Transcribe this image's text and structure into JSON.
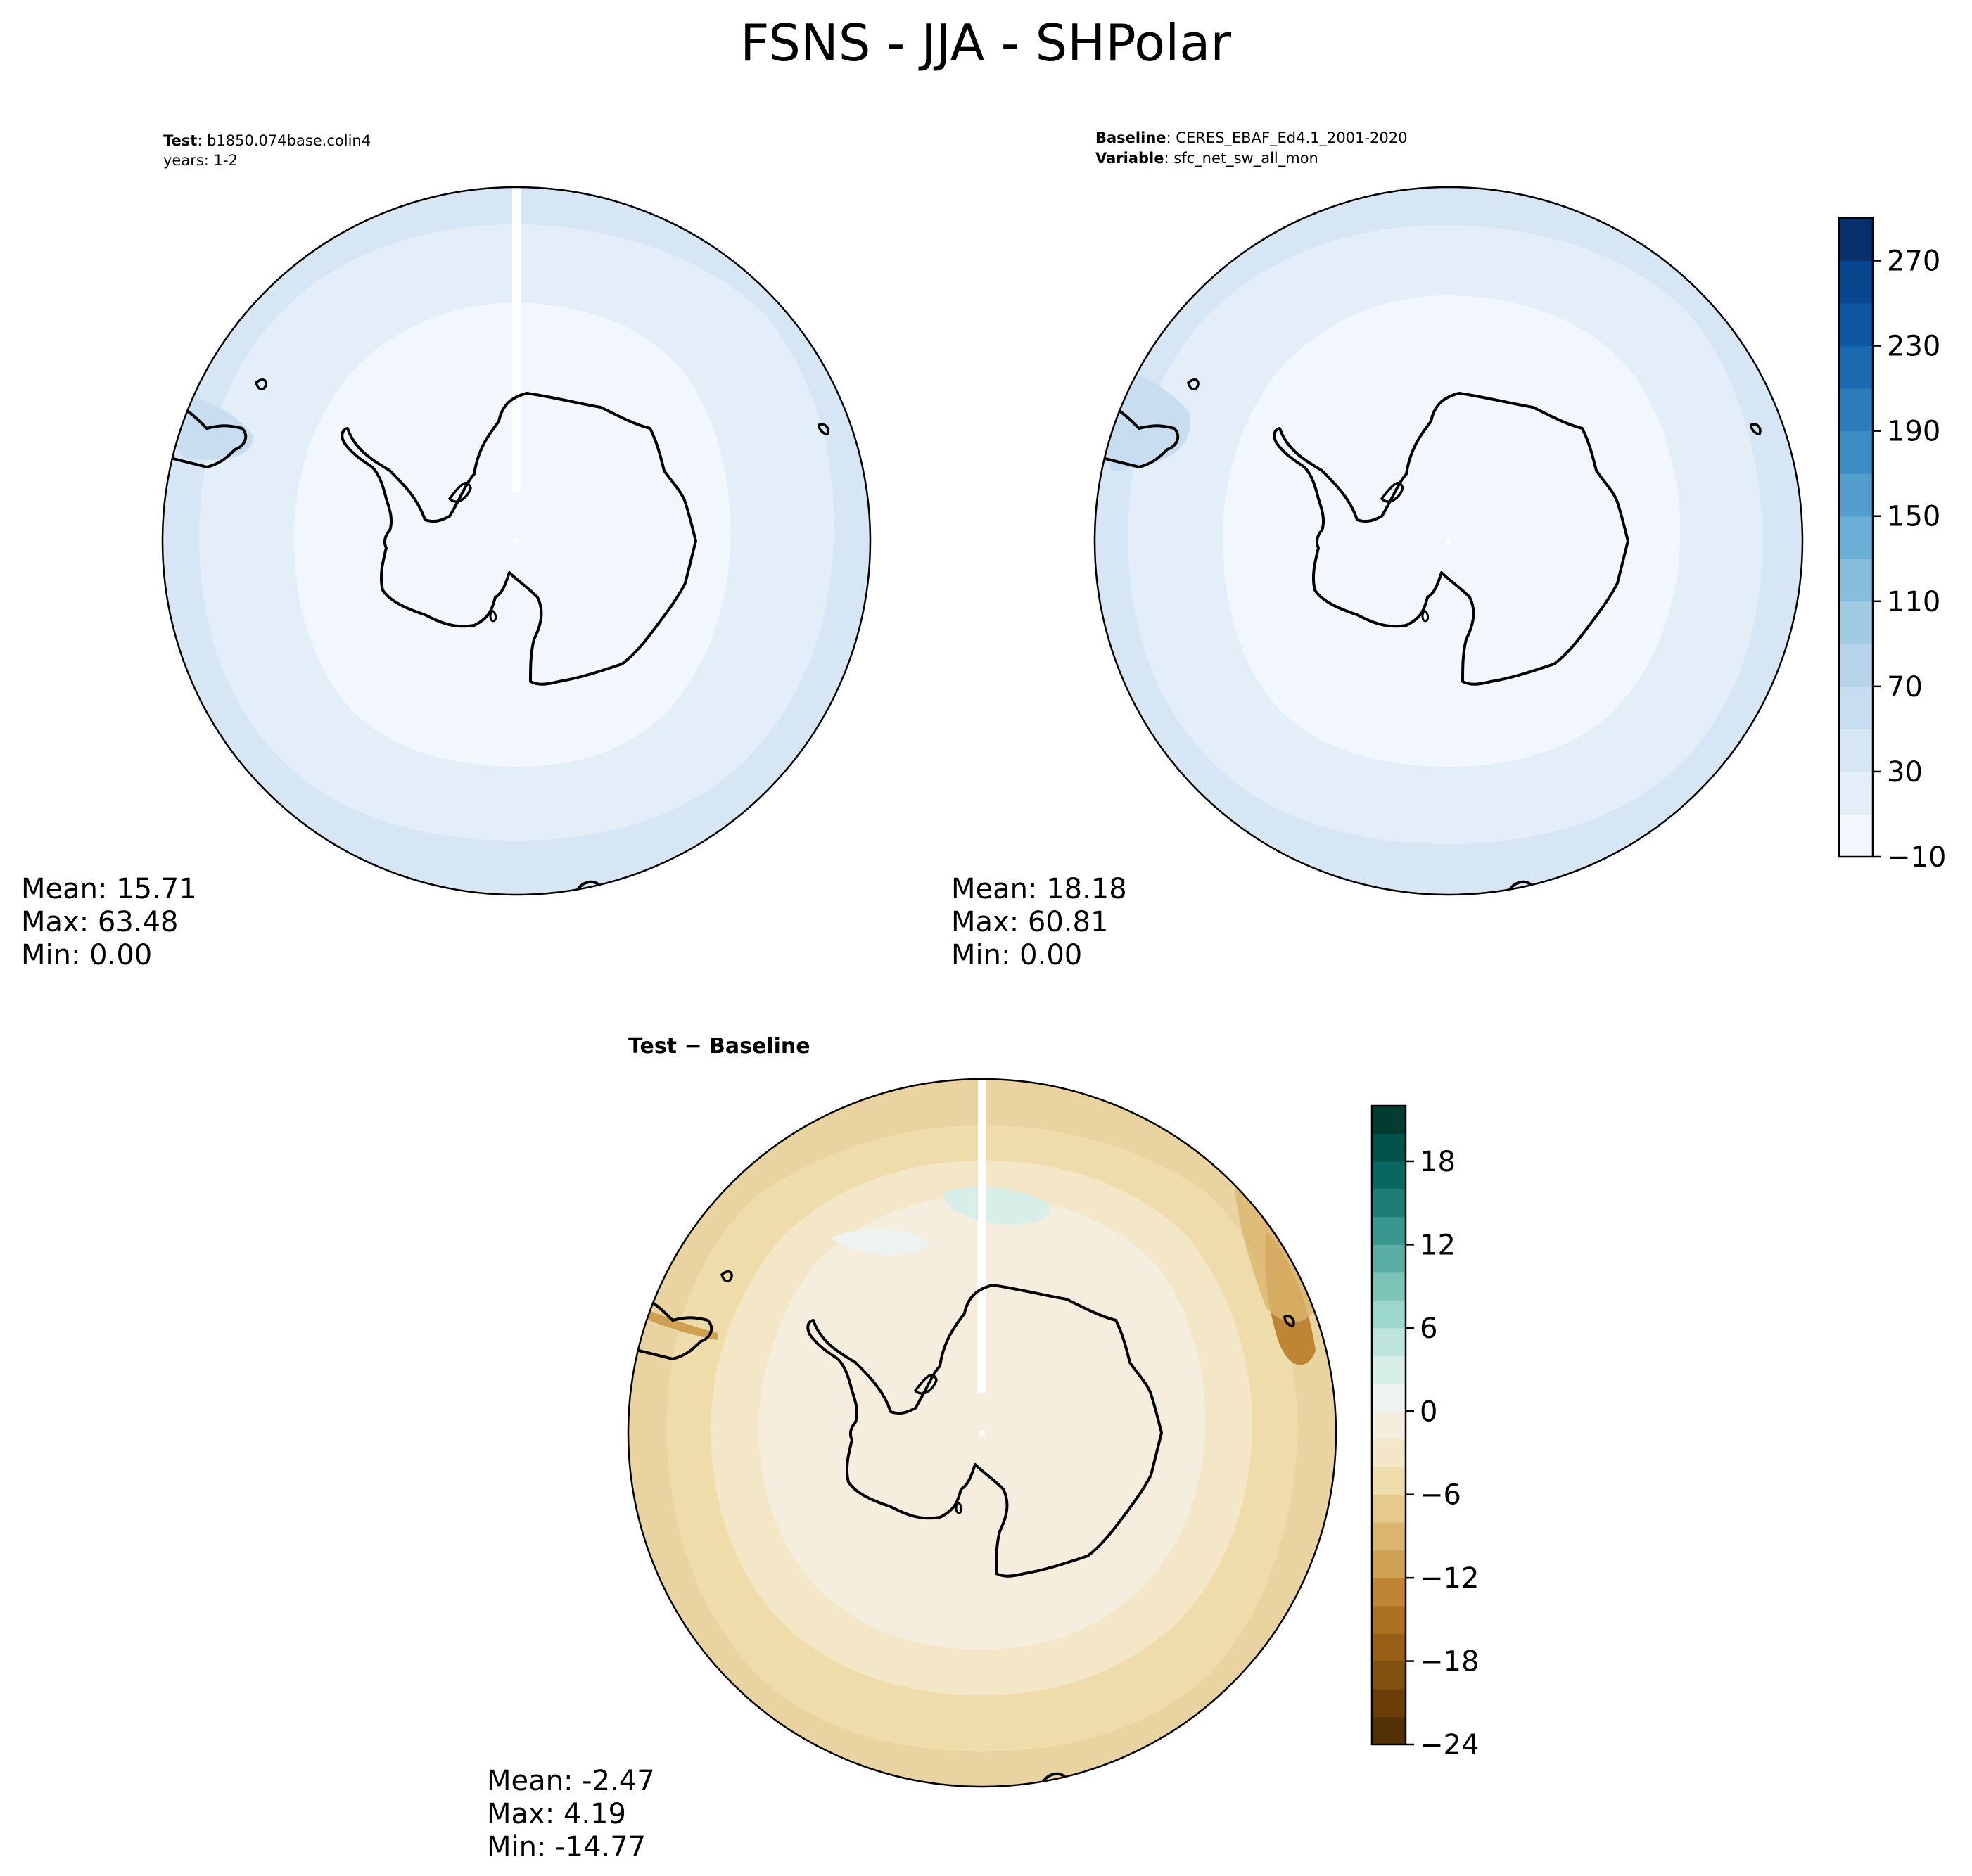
{
  "title": "FSNS - JJA - SHPolar",
  "panels": {
    "test": {
      "header_key": "Test",
      "header_value": "b1850.074base.colin4",
      "header_line2": "years: 1-2",
      "stats": {
        "mean": "Mean: 15.71",
        "max": "Max: 63.48",
        "min": "Min:  0.00"
      }
    },
    "baseline": {
      "header_key": "Baseline",
      "header_value": "CERES_EBAF_Ed4.1_2001-2020",
      "header_key2": "Variable",
      "header_value2": "sfc_net_sw_all_mon",
      "stats": {
        "mean": "Mean: 18.18",
        "max": "Max: 60.81",
        "min": "Min:  0.00"
      }
    },
    "diff": {
      "title": "Test − Baseline",
      "stats": {
        "mean": "Mean: -2.47",
        "max": "Max:  4.19",
        "min": "Min: -14.77"
      }
    }
  },
  "colorbars": {
    "main": {
      "levels": [
        -10,
        10,
        30,
        50,
        70,
        90,
        110,
        130,
        150,
        170,
        190,
        210,
        230,
        250,
        270,
        290
      ],
      "tick_labels": [
        "−10",
        "30",
        "70",
        "110",
        "150",
        "190",
        "230",
        "270"
      ],
      "colors": [
        "#f2f7fd",
        "#e3eef9",
        "#d6e6f4",
        "#c8ddf0",
        "#b7d4ea",
        "#a1cbe3",
        "#87bddc",
        "#6aaed6",
        "#529dcc",
        "#3d8dc4",
        "#2c7cba",
        "#1b6aaf",
        "#0d58a1",
        "#08478d",
        "#08306b"
      ]
    },
    "diff": {
      "levels": [
        -24,
        -22,
        -20,
        -18,
        -16,
        -14,
        -12,
        -10,
        -8,
        -6,
        -4,
        -2,
        0,
        2,
        4,
        6,
        8,
        10,
        12,
        14,
        16,
        18,
        20,
        22
      ],
      "tick_labels": [
        "−24",
        "−18",
        "−12",
        "−6",
        "0",
        "6",
        "12",
        "18"
      ],
      "colors": [
        "#543005",
        "#6b3d07",
        "#80500e",
        "#985f16",
        "#ad7221",
        "#bf8535",
        "#cfa051",
        "#dbb56e",
        "#e6c98d",
        "#efdcab",
        "#f4e7c8",
        "#f5eedf",
        "#edf3f1",
        "#d7eee9",
        "#bde5dd",
        "#9cd8cc",
        "#7ac5b8",
        "#5aaea3",
        "#3a978d",
        "#1f7d74",
        "#08675e",
        "#015249",
        "#003c30"
      ]
    }
  }
}
